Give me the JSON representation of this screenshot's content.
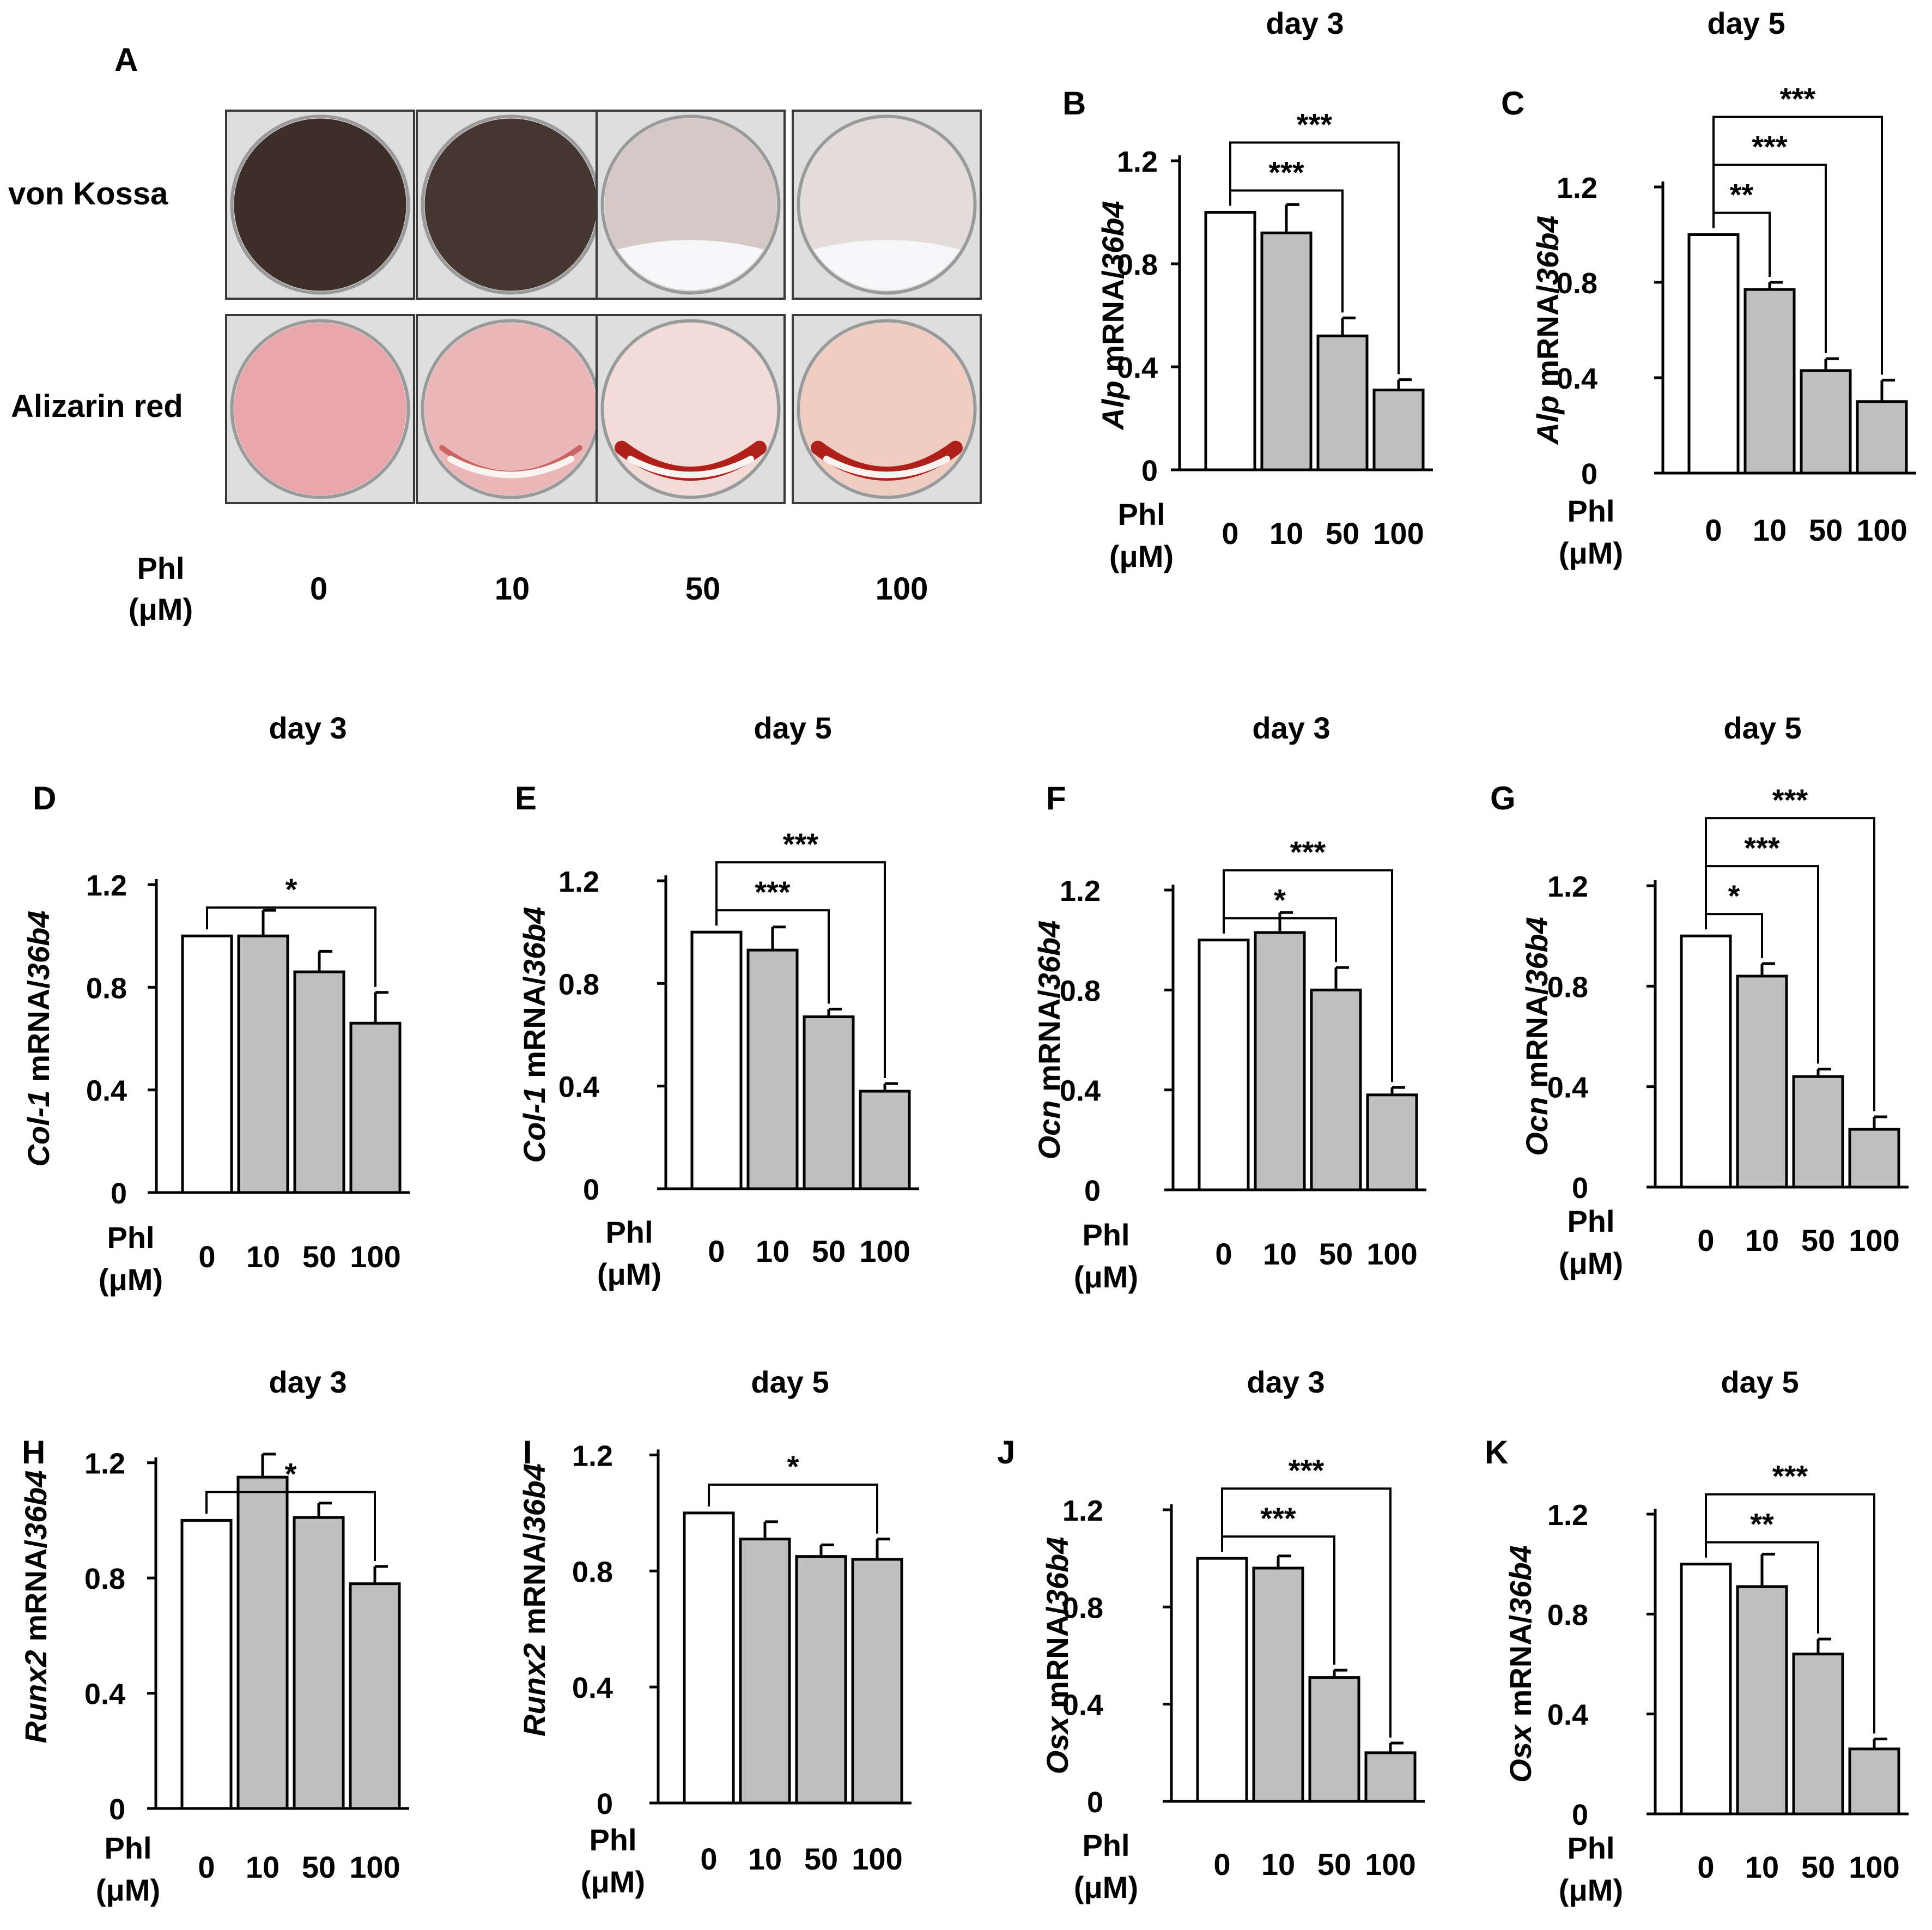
{
  "panel_a": {
    "letter": "A",
    "row_labels": [
      "von Kossa",
      "Alizarin red"
    ],
    "dose_label_line1": "Phl",
    "dose_label_line2": "(μM)",
    "doses": [
      "0",
      "10",
      "50",
      "100"
    ],
    "colors": {
      "von_kossa": [
        "#3e2e2a",
        "#463631",
        "#d6c8c4",
        "#e4dcda"
      ],
      "alizarin": [
        "#e8a6ab",
        "#eab6b8",
        "#f3dcd8",
        "#f0cdc0"
      ],
      "alizarin_band": "#b0201a"
    }
  },
  "chart_data": [
    {
      "type": "bar",
      "panel": "B",
      "title": "day 3",
      "ylabel_italic": "Alp",
      "ylabel_mid": " mRNA/",
      "ylabel_tail": "36b4",
      "xlabel_line1": "Phl",
      "xlabel_line2": "(μM)",
      "categories": [
        "0",
        "10",
        "50",
        "100"
      ],
      "values": [
        1.0,
        0.92,
        0.52,
        0.31
      ],
      "errors": [
        0,
        0.11,
        0.07,
        0.04
      ],
      "ylim": [
        0,
        1.2
      ],
      "yticks": [
        "0",
        "0.4",
        "0.8",
        "1.2"
      ],
      "significance": [
        {
          "from": 0,
          "to": 2,
          "label": "***"
        },
        {
          "from": 0,
          "to": 3,
          "label": "***"
        }
      ]
    },
    {
      "type": "bar",
      "panel": "C",
      "title": "day 5",
      "ylabel_italic": "Alp",
      "ylabel_mid": " mRNA/",
      "ylabel_tail": "36b4",
      "xlabel_line1": "Phl",
      "xlabel_line2": "(μM)",
      "categories": [
        "0",
        "10",
        "50",
        "100"
      ],
      "values": [
        1.0,
        0.77,
        0.43,
        0.3
      ],
      "errors": [
        0,
        0.03,
        0.05,
        0.09
      ],
      "ylim": [
        0,
        1.2
      ],
      "yticks": [
        "0",
        "0.4",
        "0.8",
        "1.2"
      ],
      "significance": [
        {
          "from": 0,
          "to": 1,
          "label": "**"
        },
        {
          "from": 0,
          "to": 2,
          "label": "***"
        },
        {
          "from": 0,
          "to": 3,
          "label": "***"
        }
      ]
    },
    {
      "type": "bar",
      "panel": "D",
      "title": "day 3",
      "ylabel_italic": "Col-1",
      "ylabel_mid": " mRNA/",
      "ylabel_tail": "36b4",
      "xlabel_line1": "Phl",
      "xlabel_line2": "(μM)",
      "categories": [
        "0",
        "10",
        "50",
        "100"
      ],
      "values": [
        1.0,
        1.0,
        0.86,
        0.66
      ],
      "errors": [
        0,
        0.1,
        0.08,
        0.12
      ],
      "ylim": [
        0,
        1.2
      ],
      "yticks": [
        "0",
        "0.4",
        "0.8",
        "1.2"
      ],
      "significance": [
        {
          "from": 0,
          "to": 3,
          "label": "*"
        }
      ]
    },
    {
      "type": "bar",
      "panel": "E",
      "title": "day 5",
      "ylabel_italic": "Col-1",
      "ylabel_mid": " mRNA/",
      "ylabel_tail": "36b4",
      "xlabel_line1": "Phl",
      "xlabel_line2": "(μM)",
      "categories": [
        "0",
        "10",
        "50",
        "100"
      ],
      "values": [
        1.0,
        0.93,
        0.67,
        0.38
      ],
      "errors": [
        0,
        0.09,
        0.03,
        0.03
      ],
      "ylim": [
        0,
        1.2
      ],
      "yticks": [
        "0",
        "0.4",
        "0.8",
        "1.2"
      ],
      "significance": [
        {
          "from": 0,
          "to": 2,
          "label": "***"
        },
        {
          "from": 0,
          "to": 3,
          "label": "***"
        }
      ]
    },
    {
      "type": "bar",
      "panel": "F",
      "title": "day 3",
      "ylabel_italic": "Ocn",
      "ylabel_mid": " mRNA/",
      "ylabel_tail": "36b4",
      "xlabel_line1": "Phl",
      "xlabel_line2": "(μM)",
      "categories": [
        "0",
        "10",
        "50",
        "100"
      ],
      "values": [
        1.0,
        1.03,
        0.8,
        0.38
      ],
      "errors": [
        0,
        0.08,
        0.09,
        0.03
      ],
      "ylim": [
        0,
        1.2
      ],
      "yticks": [
        "0",
        "0.4",
        "0.8",
        "1.2"
      ],
      "significance": [
        {
          "from": 0,
          "to": 2,
          "label": "*"
        },
        {
          "from": 0,
          "to": 3,
          "label": "***"
        }
      ]
    },
    {
      "type": "bar",
      "panel": "G",
      "title": "day 5",
      "ylabel_italic": "Ocn",
      "ylabel_mid": " mRNA/",
      "ylabel_tail": "36b4",
      "xlabel_line1": "Phl",
      "xlabel_line2": "(μM)",
      "categories": [
        "0",
        "10",
        "50",
        "100"
      ],
      "values": [
        1.0,
        0.84,
        0.44,
        0.23
      ],
      "errors": [
        0,
        0.05,
        0.03,
        0.05
      ],
      "ylim": [
        0,
        1.2
      ],
      "yticks": [
        "0",
        "0.4",
        "0.8",
        "1.2"
      ],
      "significance": [
        {
          "from": 0,
          "to": 1,
          "label": "*"
        },
        {
          "from": 0,
          "to": 2,
          "label": "***"
        },
        {
          "from": 0,
          "to": 3,
          "label": "***"
        }
      ]
    },
    {
      "type": "bar",
      "panel": "H",
      "title": "day 3",
      "ylabel_italic": "Runx2",
      "ylabel_mid": " mRNA/",
      "ylabel_tail": "36b4",
      "xlabel_line1": "Phl",
      "xlabel_line2": "(μM)",
      "categories": [
        "0",
        "10",
        "50",
        "100"
      ],
      "values": [
        1.0,
        1.15,
        1.01,
        0.78
      ],
      "errors": [
        0,
        0.08,
        0.05,
        0.06
      ],
      "ylim": [
        0,
        1.4
      ],
      "yticks": [
        "0",
        "0.4",
        "0.8",
        "1.2"
      ],
      "significance": [
        {
          "from": 0,
          "to": 3,
          "label": "*"
        }
      ]
    },
    {
      "type": "bar",
      "panel": "I",
      "title": "day 5",
      "ylabel_italic": "Runx2",
      "ylabel_mid": " mRNA/",
      "ylabel_tail": "36b4",
      "xlabel_line1": "Phl",
      "xlabel_line2": "(μM)",
      "categories": [
        "0",
        "10",
        "50",
        "100"
      ],
      "values": [
        1.0,
        0.91,
        0.85,
        0.84
      ],
      "errors": [
        0,
        0.06,
        0.04,
        0.07
      ],
      "ylim": [
        0,
        1.4
      ],
      "yticks": [
        "0",
        "0.4",
        "0.8",
        "1.2"
      ],
      "significance": [
        {
          "from": 0,
          "to": 3,
          "label": "*"
        }
      ]
    },
    {
      "type": "bar",
      "panel": "J",
      "title": "day 3",
      "ylabel_italic": "Osx",
      "ylabel_mid": " mRNA/",
      "ylabel_tail": "36b4",
      "xlabel_line1": "Phl",
      "xlabel_line2": "(μM)",
      "categories": [
        "0",
        "10",
        "50",
        "100"
      ],
      "values": [
        1.0,
        0.96,
        0.51,
        0.2
      ],
      "errors": [
        0,
        0.05,
        0.03,
        0.04
      ],
      "ylim": [
        0,
        1.2
      ],
      "yticks": [
        "0",
        "0.4",
        "0.8",
        "1.2"
      ],
      "significance": [
        {
          "from": 0,
          "to": 2,
          "label": "***"
        },
        {
          "from": 0,
          "to": 3,
          "label": "***"
        }
      ]
    },
    {
      "type": "bar",
      "panel": "K",
      "title": "day 5",
      "ylabel_italic": "Osx",
      "ylabel_mid": " mRNA/",
      "ylabel_tail": "36b4",
      "xlabel_line1": "Phl",
      "xlabel_line2": "(μM)",
      "categories": [
        "0",
        "10",
        "50",
        "100"
      ],
      "values": [
        1.0,
        0.91,
        0.64,
        0.26
      ],
      "errors": [
        0,
        0.13,
        0.06,
        0.04
      ],
      "ylim": [
        0,
        1.2
      ],
      "yticks": [
        "0",
        "0.4",
        "0.8",
        "1.2"
      ],
      "significance": [
        {
          "from": 0,
          "to": 2,
          "label": "**"
        },
        {
          "from": 0,
          "to": 3,
          "label": "***"
        }
      ]
    }
  ]
}
